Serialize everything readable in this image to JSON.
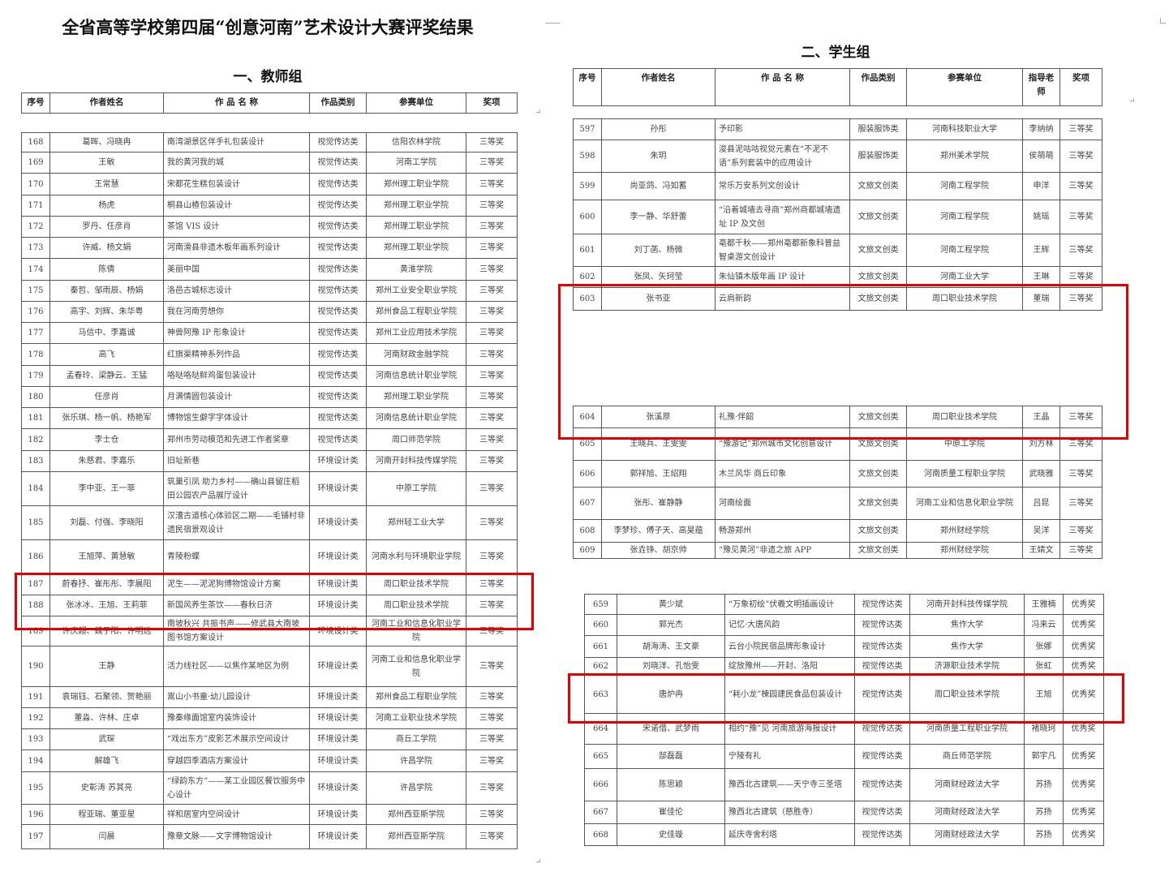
{
  "document": {
    "title": "全省高等学校第四届“创意河南”艺术设计大赛评奖结果",
    "highlight_color": "#e60000"
  },
  "teacher_group": {
    "heading": "一、教师组",
    "columns": [
      "序号",
      "作者姓名",
      "作 品 名 称",
      "作品类别",
      "参赛单位",
      "奖项"
    ],
    "rows": [
      [
        "168",
        "葛晖、冯晓冉",
        "南湾湖景区伴手礼包装设计",
        "视觉传达类",
        "信阳农林学院",
        "三等奖"
      ],
      [
        "169",
        "王敏",
        "我的黄河我的城",
        "视觉传达类",
        "河南工学院",
        "三等奖"
      ],
      [
        "170",
        "王常慧",
        "宋都花生糕包装设计",
        "视觉传达类",
        "郑州理工职业学院",
        "三等奖"
      ],
      [
        "171",
        "杨虎",
        "桐县山楂包装设计",
        "视觉传达类",
        "郑州理工职业学院",
        "三等奖"
      ],
      [
        "172",
        "罗丹、任彦肖",
        "茶馆 VIS 设计",
        "视觉传达类",
        "郑州理工职业学院",
        "三等奖"
      ],
      [
        "173",
        "许威、杨文娟",
        "河南滑县非遗木板年画系列设计",
        "视觉传达类",
        "郑州理工职业学院",
        "三等奖"
      ],
      [
        "174",
        "陈倩",
        "美丽中国",
        "视觉传达类",
        "黄淮学院",
        "三等奖"
      ],
      [
        "175",
        "秦哲、邹雨辰、杨娟",
        "洛邑古城标志设计",
        "视觉传达类",
        "郑州工业安全职业学院",
        "三等奖"
      ],
      [
        "176",
        "高宇、刘辉、朱华粤",
        "我在河南劳想你",
        "视觉传达类",
        "郑州食品工程职业学院",
        "三等奖"
      ],
      [
        "177",
        "马信中、李嘉诚",
        "神兽阿豫 IP 形象设计",
        "视觉传达类",
        "郑州工业应用技术学院",
        "三等奖"
      ],
      [
        "178",
        "高飞",
        "红旗渠精神系列作品",
        "视觉传达类",
        "河南财政金融学院",
        "三等奖"
      ],
      [
        "179",
        "孟春玲、梁静云、王猛",
        "咯哒咯哒鲜鸡蛋包装设计",
        "视觉传达类",
        "河南信息统计职业学院",
        "三等奖"
      ],
      [
        "180",
        "任彦肖",
        "月满情圆包装设计",
        "视觉传达类",
        "郑州理工职业学院",
        "三等奖"
      ],
      [
        "181",
        "张乐琪、杨一帆、杨艳军",
        "博物馆生僻字字体设计",
        "视觉传达类",
        "河南信息统计职业学院",
        "三等奖"
      ],
      [
        "182",
        "李士仓",
        "郑州市劳动模范和先进工作者奖章",
        "视觉传达类",
        "周口师范学院",
        "三等奖"
      ],
      [
        "183",
        "朱慈君、李嘉乐",
        "旧址新巷",
        "环境设计类",
        "河南开封科技传媒学院",
        "三等奖"
      ],
      [
        "184",
        "李中亚、王一菲",
        "筑巢引凤 助力乡村——确山县留庄稻田公园农产品展厅设计",
        "环境设计类",
        "中原工学院",
        "三等奖"
      ],
      [
        "185",
        "刘磊、付强、李晓阳",
        "汉漕古道核心体验区二期——毛铺村非遗民宿景观设计",
        "环境设计类",
        "郑州轻工业大学",
        "三等奖"
      ],
      [
        "186",
        "王旭萍、黄慧敏",
        "青陵粉蝶",
        "环境设计类",
        "河南水利与环境职业学院",
        "三等奖"
      ],
      [
        "187",
        "蔚春抒、崔彤彤、李晨阳",
        "泥生——泥泥狗博物馆设计方案",
        "环境设计类",
        "周口职业技术学院",
        "三等奖"
      ],
      [
        "188",
        "张冰冰、王旭、王莉菲",
        "新国风养生茶饮——春秋日济",
        "环境设计类",
        "周口职业技术学院",
        "三等奖"
      ],
      [
        "189",
        "许庆超、魏子阳、许明远",
        "南坡秋兴 共振书声——修武县大南坡图书馆方案设计",
        "环境设计类",
        "河南工业和信息化职业学院",
        "三等奖"
      ],
      [
        "190",
        "王静",
        "活力线社区——以焦作某地区为例",
        "环境设计类",
        "河南工业和信息化职业学院",
        "三等奖"
      ],
      [
        "191",
        "袁瑞钰、石聚领、贺艳丽",
        "嵩山小书童·幼儿园设计",
        "环境设计类",
        "郑州食品工程职业学院",
        "三等奖"
      ],
      [
        "192",
        "董淼、许林、庄卓",
        "豫秦缘面馆室内装饰设计",
        "环境设计类",
        "河南工业职业技术学院",
        "三等奖"
      ],
      [
        "193",
        "武琛",
        "“戏出东方”皮影艺术展示空间设计",
        "环境设计类",
        "商丘工学院",
        "三等奖"
      ],
      [
        "194",
        "解雄飞",
        "穿越四季酒店方案设计",
        "环境设计类",
        "许昌学院",
        "三等奖"
      ],
      [
        "195",
        "史彰涛 苏其亮",
        "“绿韵东方”——某工业园区餐饮服务中心设计",
        "环境设计类",
        "许昌学院",
        "三等奖"
      ],
      [
        "196",
        "程亚瑞、董亚星",
        "祥和居室内空间设计",
        "环境设计类",
        "郑州西亚斯学院",
        "三等奖"
      ],
      [
        "197",
        "闫晨",
        "豫章文脉——文字博物馆设计",
        "环境设计类",
        "郑州西亚斯学院",
        "三等奖"
      ]
    ]
  },
  "student_group": {
    "heading": "二、学生组",
    "columns": [
      "序号",
      "作者姓名",
      "作 品 名 称",
      "作品类别",
      "参赛单位",
      "指导老师",
      "奖项"
    ],
    "rows": [
      [
        "597",
        "孙彤",
        "予印影",
        "服装服饰类",
        "河南科技职业大学",
        "李纳纳",
        "三等奖"
      ],
      [
        "598",
        "朱玥",
        "浚县泥咕咕视觉元素在“不泥不语”系列套装中的应用设计",
        "服装服饰类",
        "郑州美术学院",
        "侯萌萌",
        "三等奖"
      ],
      [
        "599",
        "尚亚鸽、冯如蓄",
        "常乐万安系列文创设计",
        "文旅文创类",
        "河南工程学院",
        "申洋",
        "三等奖"
      ],
      [
        "600",
        "李一静、华舒蕾",
        "“沿着城墙去寻商”郑州商都城墙遗址 IP 及文创",
        "文旅文创类",
        "河南工程学院",
        "姚瑶",
        "三等奖"
      ],
      [
        "601",
        "刘丁菡、杨微",
        "亳都千秋——郑州亳都新象科普益智桌游文创设计",
        "文旅文创类",
        "河南工程学院",
        "王辉",
        "三等奖"
      ],
      [
        "602",
        "张凤、矢珂莹",
        "朱仙镇木版年画 IP 设计",
        "文旅文创类",
        "河南工业大学",
        "王琳",
        "三等奖"
      ],
      [
        "603",
        "张书亚",
        "云肩新韵",
        "文旅文创类",
        "周口职业技术学院",
        "董瑞",
        "三等奖"
      ],
      [
        "604",
        "张溪原",
        "礼豫·伴韶",
        "文旅文创类",
        "周口职业技术学院",
        "王晶",
        "三等奖"
      ],
      [
        "605",
        "王晓兵、王雯雯",
        "“豫游记”郑州城市文化创意设计",
        "文旅文创类",
        "中原工学院",
        "刘方林",
        "三等奖"
      ],
      [
        "606",
        "郭祥旭、王绍翔",
        "木兰风华 商丘印象",
        "文旅文创类",
        "河南质量工程职业学院",
        "武晓雅",
        "三等奖"
      ],
      [
        "607",
        "张彤、崔静静",
        "河南绘面",
        "文旅文创类",
        "河南工业和信息化职业学院",
        "吕昆",
        "三等奖"
      ],
      [
        "608",
        "李梦珍、傅子天、高昊蕴",
        "畅游郑州",
        "文旅文创类",
        "郑州财经学院",
        "吴洋",
        "三等奖"
      ],
      [
        "609",
        "张垚铮、胡京帅",
        "“豫见黄河”非遗之旅 APP",
        "文旅文创类",
        "郑州财经学院",
        "王婧文",
        "三等奖"
      ]
    ],
    "rows_b": [
      [
        "659",
        "黄少斌",
        "“万象初绘”伏羲文明插画设计",
        "视觉传达类",
        "河南开封科技传媒学院",
        "王雅楠",
        "优秀奖"
      ],
      [
        "660",
        "郭光杰",
        "记忆·大唐风韵",
        "视觉传达类",
        "焦作大学",
        "冯来云",
        "优秀奖"
      ],
      [
        "661",
        "胡海涛、王文豪",
        "云台小院民宿品牌形象设计",
        "视觉传达类",
        "焦作大学",
        "张娜",
        "优秀奖"
      ],
      [
        "662",
        "刘晓洋、孔怡雯",
        "绽放豫州——开封、洛阳",
        "视觉传达类",
        "济源职业技术学院",
        "张虹",
        "优秀奖"
      ],
      [
        "663",
        "唐炉冉",
        "“耗小龙”楝园建民食品包装设计",
        "视觉传达类",
        "周口职业技术学院",
        "王旭",
        "优秀奖"
      ],
      [
        "664",
        "宋诺借、武梦雨",
        "相约“豫”见 河南旅游海报设计",
        "视觉传达类",
        "河南质量工程职业学院",
        "褚晓珂",
        "优秀奖"
      ],
      [
        "665",
        "郜磊磊",
        "宁陵有礼",
        "视觉传达类",
        "商丘师范学院",
        "郭宇凡",
        "优秀奖"
      ],
      [
        "666",
        "陈思颖",
        "豫西北古建筑——天宁寺三圣塔",
        "视觉传达类",
        "河南财经政法大学",
        "苏扬",
        "优秀奖"
      ],
      [
        "667",
        "崔佳伦",
        "豫西北古建筑（慈胜寺）",
        "视觉传达类",
        "河南财经政法大学",
        "苏扬",
        "优秀奖"
      ],
      [
        "668",
        "史佳璇",
        "延庆寺舍利塔",
        "视觉传达类",
        "河南财经政法大学",
        "苏扬",
        "优秀奖"
      ]
    ]
  }
}
